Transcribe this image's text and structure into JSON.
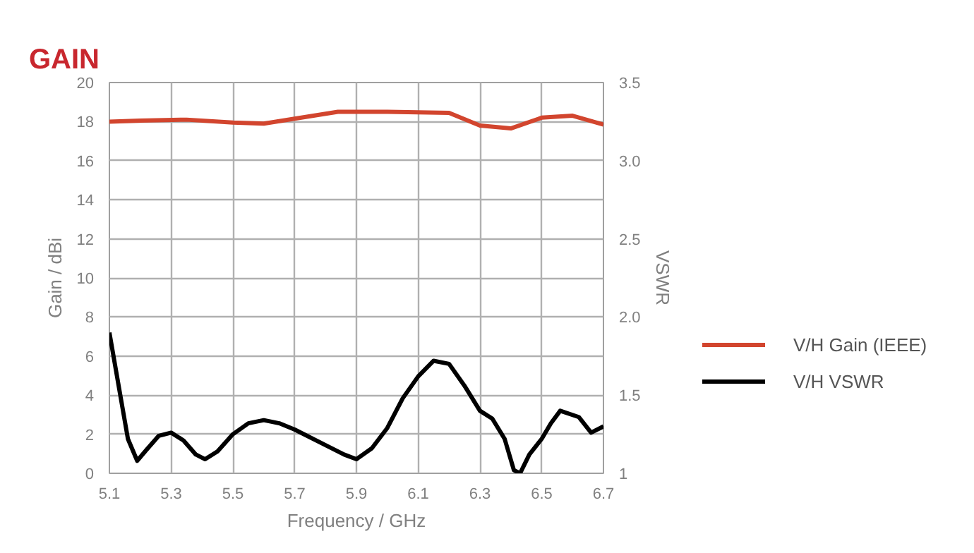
{
  "chart_data": {
    "type": "line",
    "title": "GAIN",
    "xlabel": "Frequency / GHz",
    "ylabel": "Gain / dBi",
    "y2label": "VSWR",
    "xlim": [
      5.1,
      6.7
    ],
    "xticks": [
      5.1,
      5.3,
      5.5,
      5.7,
      5.9,
      6.1,
      6.3,
      6.5,
      6.7
    ],
    "ylim": [
      0,
      20
    ],
    "yticks": [
      0,
      2,
      4,
      6,
      8,
      10,
      12,
      14,
      16,
      18,
      20
    ],
    "y2lim": [
      1,
      3.5
    ],
    "y2ticks": [
      1,
      1.5,
      {
        "value": 2,
        "label": "2.0"
      },
      2.5,
      {
        "value": 3,
        "label": "3.0"
      },
      3.5
    ],
    "grid": true,
    "legend": "right",
    "line_style": "solid",
    "marker": "none",
    "series": [
      {
        "name": "V/H Gain (IEEE)",
        "color": "#d2452e",
        "x": [
          5.1,
          5.2,
          5.35,
          5.5,
          5.6,
          5.7,
          5.84,
          6.0,
          6.2,
          6.3,
          6.4,
          6.5,
          6.6,
          6.7
        ],
        "values": [
          18.0,
          18.05,
          18.1,
          17.95,
          17.9,
          18.15,
          18.5,
          18.5,
          18.45,
          17.8,
          17.65,
          18.2,
          18.3,
          17.85
        ]
      },
      {
        "name": "V/H VSWR",
        "color": "#000000",
        "axis": "y2",
        "x": [
          5.1,
          5.13,
          5.16,
          5.19,
          5.22,
          5.26,
          5.3,
          5.34,
          5.38,
          5.41,
          5.45,
          5.5,
          5.55,
          5.6,
          5.65,
          5.7,
          5.8,
          5.86,
          5.9,
          5.95,
          6.0,
          6.05,
          6.1,
          6.15,
          6.2,
          6.25,
          6.3,
          6.34,
          6.38,
          6.41,
          6.43,
          6.46,
          6.5,
          6.53,
          6.56,
          6.62,
          6.66,
          6.7
        ],
        "values": [
          1.9,
          1.56,
          1.22,
          1.08,
          1.15,
          1.24,
          1.26,
          1.21,
          1.12,
          1.09,
          1.14,
          1.25,
          1.32,
          1.34,
          1.32,
          1.28,
          1.18,
          1.12,
          1.09,
          1.16,
          1.29,
          1.48,
          1.62,
          1.72,
          1.7,
          1.56,
          1.4,
          1.35,
          1.22,
          1.02,
          1.0,
          1.12,
          1.22,
          1.32,
          1.4,
          1.36,
          1.26,
          1.3
        ]
      }
    ]
  }
}
